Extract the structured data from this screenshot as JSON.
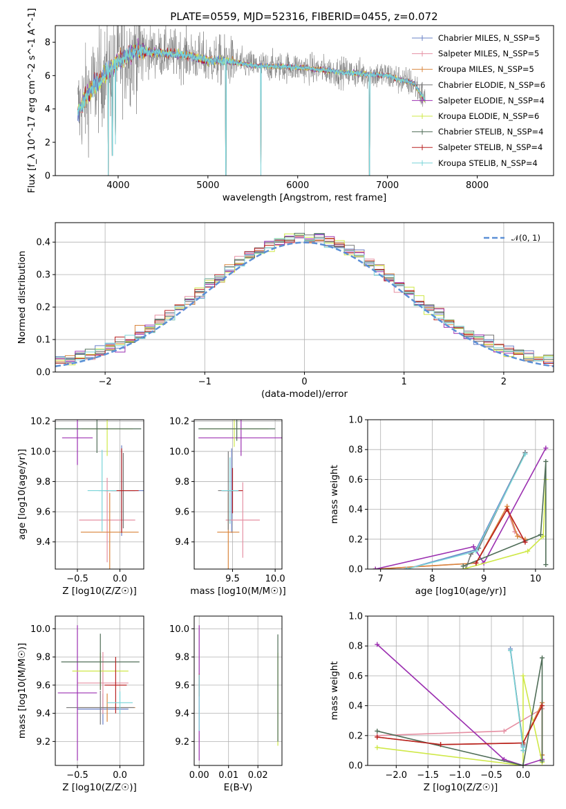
{
  "title": "PLATE=0559, MJD=52316, FIBERID=0455, z=0.072",
  "series": [
    {
      "name": "Chabrier MILES",
      "legend": "Chabrier MILES, N_SSP=5",
      "color": "#6a80c6"
    },
    {
      "name": "Salpeter MILES",
      "legend": "Salpeter MILES, N_SSP=5",
      "color": "#e58fa2"
    },
    {
      "name": "Kroupa MILES",
      "legend": "Kroupa MILES, N_SSP=5",
      "color": "#d9853c"
    },
    {
      "name": "Chabrier ELODIE",
      "legend": "Chabrier ELODIE, N_SSP=6",
      "color": "#777777"
    },
    {
      "name": "Salpeter ELODIE",
      "legend": "Salpeter ELODIE, N_SSP=4",
      "color": "#9b2fb0"
    },
    {
      "name": "Kroupa ELODIE",
      "legend": "Kroupa ELODIE, N_SSP=6",
      "color": "#cfe847"
    },
    {
      "name": "Chabrier STELIB",
      "legend": "Chabrier STELIB, N_SSP=4",
      "color": "#4f6d57"
    },
    {
      "name": "Salpeter STELIB",
      "legend": "Salpeter STELIB, N_SSP=4",
      "color": "#b82020"
    },
    {
      "name": "Kroupa STELIB",
      "legend": "Kroupa STELIB, N_SSP=4",
      "color": "#78d4d8"
    }
  ],
  "chart_data": [
    {
      "type": "line",
      "id": "spectrum",
      "xlabel": "wavelength [Angstrom, rest frame]",
      "ylabel": "Flux [f_λ 10^-17 erg cm^-2 s^-1 A^-1]",
      "xlim": [
        3300,
        8850
      ],
      "ylim": [
        0,
        9
      ],
      "xticks": [
        4000,
        5000,
        6000,
        7000,
        8000
      ],
      "yticks": [
        0,
        2,
        4,
        6,
        8
      ],
      "legend_position": "top-right",
      "wavelength_range": [
        3550,
        7420
      ],
      "continuum": {
        "x": [
          3550,
          3600,
          3700,
          3800,
          3900,
          4000,
          4100,
          4200,
          4400,
          4600,
          4800,
          5000,
          5200,
          5500,
          6000,
          6500,
          7000,
          7300,
          7420
        ],
        "y": [
          3.8,
          4.3,
          5.2,
          5.8,
          6.3,
          6.9,
          7.2,
          7.5,
          7.4,
          7.3,
          7.2,
          6.9,
          6.9,
          6.6,
          6.5,
          6.2,
          6.0,
          5.5,
          4.5
        ]
      },
      "spikes": [
        {
          "x": 3890,
          "y": 0.0
        },
        {
          "x": 3935,
          "y": 1.2
        },
        {
          "x": 3970,
          "y": 1.9
        },
        {
          "x": 5200,
          "y": 0.0
        },
        {
          "x": 5590,
          "y": 0.0
        },
        {
          "x": 6800,
          "y": 0.0
        }
      ]
    },
    {
      "type": "bar",
      "id": "residuals",
      "xlabel": "(data-model)/error",
      "ylabel": "Normed distribution",
      "xlim": [
        -2.5,
        2.5
      ],
      "ylim": [
        0,
        0.46
      ],
      "xticks": [
        -2,
        -1,
        0,
        1,
        2
      ],
      "yticks": [
        0.0,
        0.1,
        0.2,
        0.3,
        0.4
      ],
      "grid": true,
      "legend_position": "top-right",
      "reference_curve": {
        "name": "𝒩(0, 1)",
        "mean": 0,
        "sigma": 1
      },
      "bin_width": 0.1
    },
    {
      "type": "scatter",
      "id": "age_vs_Z",
      "xlabel": "Z [log10(Z/Z☉)]",
      "ylabel": "age [log10(age/yr)]",
      "xlim": [
        -0.76,
        0.28
      ],
      "ylim": [
        9.22,
        10.21
      ],
      "xticks": [
        -0.5,
        0.0
      ],
      "yticks": [
        9.4,
        9.6,
        9.8,
        10.0,
        10.2
      ],
      "grid": true,
      "points": [
        {
          "series": "Chabrier MILES",
          "x": 0.02,
          "xerr": 0.27,
          "y": 9.74,
          "yerr": 0.3
        },
        {
          "series": "Salpeter MILES",
          "x": -0.15,
          "xerr": 0.33,
          "y": 9.545,
          "yerr": 0.28
        },
        {
          "series": "Kroupa MILES",
          "x": -0.12,
          "xerr": 0.34,
          "y": 9.465,
          "yerr": 0.26
        },
        {
          "series": "Chabrier ELODIE",
          "x": 0.04,
          "xerr": 0.14,
          "y": 9.74,
          "yerr": 0.25
        },
        {
          "series": "Salpeter ELODIE",
          "x": -0.5,
          "xerr": 0.18,
          "y": 10.09,
          "yerr": 0.18
        },
        {
          "series": "Kroupa ELODIE",
          "x": -0.15,
          "xerr": 0.3,
          "y": 10.15,
          "yerr": 0.18
        },
        {
          "series": "Chabrier STELIB",
          "x": -0.27,
          "xerr": 0.52,
          "y": 10.15,
          "yerr": 0.16
        },
        {
          "series": "Salpeter STELIB",
          "x": 0.02,
          "xerr": 0.2,
          "y": 9.74,
          "yerr": 0.28
        },
        {
          "series": "Kroupa STELIB",
          "x": -0.21,
          "xerr": 0.17,
          "y": 9.74,
          "yerr": 0.27
        }
      ]
    },
    {
      "type": "scatter",
      "id": "age_vs_mass",
      "xlabel": "mass [log10(M/M☉)]",
      "ylabel": "",
      "xlim": [
        9.05,
        10.08
      ],
      "ylim": [
        9.22,
        10.21
      ],
      "xticks": [
        9.5,
        10.0
      ],
      "yticks": [
        9.4,
        9.6,
        9.8,
        10.0,
        10.2
      ],
      "grid": true,
      "points": [
        {
          "series": "Chabrier MILES",
          "x": 9.49,
          "xerr": 0.12,
          "y": 9.74,
          "yerr": 0.28
        },
        {
          "series": "Salpeter MILES",
          "x": 9.62,
          "xerr": 0.2,
          "y": 9.545,
          "yerr": 0.25
        },
        {
          "series": "Kroupa MILES",
          "x": 9.45,
          "xerr": 0.13,
          "y": 9.465,
          "yerr": 0.26
        },
        {
          "series": "Chabrier ELODIE",
          "x": 9.45,
          "xerr": 0.12,
          "y": 9.74,
          "yerr": 0.26
        },
        {
          "series": "Salpeter ELODIE",
          "x": 9.6,
          "xerr": 0.5,
          "y": 10.09,
          "yerr": 0.12
        },
        {
          "series": "Kroupa ELODIE",
          "x": 9.52,
          "xerr": 0.4,
          "y": 10.15,
          "yerr": 0.12
        },
        {
          "series": "Chabrier STELIB",
          "x": 9.55,
          "xerr": 0.45,
          "y": 10.15,
          "yerr": 0.08
        },
        {
          "series": "Salpeter STELIB",
          "x": 9.5,
          "xerr": 0.12,
          "y": 9.74,
          "yerr": 0.15
        },
        {
          "series": "Kroupa STELIB",
          "x": 9.47,
          "xerr": 0.1,
          "y": 9.74,
          "yerr": 0.22
        }
      ]
    },
    {
      "type": "line",
      "id": "massweight_vs_age",
      "xlabel": "age [log10(age/yr)]",
      "ylabel": "mass weight",
      "xlim": [
        6.75,
        10.35
      ],
      "ylim": [
        0.0,
        1.0
      ],
      "xticks": [
        7,
        8,
        9,
        10
      ],
      "yticks": [
        0.0,
        0.2,
        0.4,
        0.6,
        0.8,
        1.0
      ],
      "grid": true,
      "lines": [
        {
          "series": "Chabrier MILES",
          "x": [
            7.5,
            8.85,
            9.8
          ],
          "y": [
            0.0,
            0.13,
            0.78
          ]
        },
        {
          "series": "Salpeter MILES",
          "x": [
            6.9,
            8.85,
            9.45,
            9.6,
            9.8
          ],
          "y": [
            0.0,
            0.04,
            0.4,
            0.25,
            0.19
          ]
        },
        {
          "series": "Kroupa MILES",
          "x": [
            6.9,
            8.85,
            9.45,
            9.65,
            9.8
          ],
          "y": [
            0.0,
            0.04,
            0.42,
            0.22,
            0.2
          ]
        },
        {
          "series": "Chabrier ELODIE",
          "x": [
            8.65,
            8.75,
            8.9,
            9.8
          ],
          "y": [
            0.0,
            0.1,
            0.14,
            0.78
          ]
        },
        {
          "series": "Salpeter ELODIE",
          "x": [
            6.9,
            8.8,
            9.0,
            10.2
          ],
          "y": [
            0.0,
            0.15,
            0.04,
            0.81
          ]
        },
        {
          "series": "Kroupa ELODIE",
          "x": [
            8.6,
            9.85,
            10.15,
            10.2
          ],
          "y": [
            0.0,
            0.12,
            0.22,
            0.6
          ]
        },
        {
          "series": "Chabrier STELIB",
          "x": [
            8.6,
            10.1,
            10.2,
            10.2
          ],
          "y": [
            0.02,
            0.23,
            0.72,
            0.03
          ]
        },
        {
          "series": "Salpeter STELIB",
          "x": [
            8.85,
            9.45,
            9.8
          ],
          "y": [
            0.04,
            0.4,
            0.18
          ]
        },
        {
          "series": "Kroupa STELIB",
          "x": [
            7.5,
            8.85,
            9.8
          ],
          "y": [
            0.0,
            0.12,
            0.77
          ]
        }
      ]
    },
    {
      "type": "scatter",
      "id": "mass_vs_Z",
      "xlabel": "Z [log10(Z/Z☉)]",
      "ylabel": "mass [log10(M/M☉)]",
      "xlim": [
        -0.76,
        0.28
      ],
      "ylim": [
        9.03,
        10.09
      ],
      "xticks": [
        -0.5,
        0.0
      ],
      "yticks": [
        9.2,
        9.4,
        9.6,
        9.8,
        10.0
      ],
      "grid": true,
      "points": [
        {
          "series": "Chabrier MILES",
          "x": -0.2,
          "xerr": 0.3,
          "y": 9.43,
          "yerr": 0.11
        },
        {
          "series": "Salpeter MILES",
          "x": -0.2,
          "xerr": 0.3,
          "y": 9.615,
          "yerr": 0.22
        },
        {
          "series": "Kroupa MILES",
          "x": -0.15,
          "xerr": 0.33,
          "y": 9.44,
          "yerr": 0.1
        },
        {
          "series": "Chabrier ELODIE",
          "x": -0.23,
          "xerr": 0.4,
          "y": 9.44,
          "yerr": 0.12
        },
        {
          "series": "Salpeter ELODIE",
          "x": -0.5,
          "xerr": 0.23,
          "y": 9.545,
          "yerr": 0.48
        },
        {
          "series": "Kroupa ELODIE",
          "x": -0.23,
          "xerr": 0.33,
          "y": 9.7,
          "yerr": 0.13
        },
        {
          "series": "Chabrier STELIB",
          "x": -0.23,
          "xerr": 0.46,
          "y": 9.765,
          "yerr": 0.2
        },
        {
          "series": "Salpeter STELIB",
          "x": -0.05,
          "xerr": 0.13,
          "y": 9.6,
          "yerr": 0.2
        },
        {
          "series": "Kroupa STELIB",
          "x": 0.0,
          "xerr": 0.15,
          "y": 9.475,
          "yerr": 0.08
        }
      ]
    },
    {
      "type": "scatter",
      "id": "mass_vs_ebv",
      "xlabel": "E(B-V)",
      "ylabel": "",
      "xlim": [
        -0.0017,
        0.0282
      ],
      "ylim": [
        9.03,
        10.09
      ],
      "xticks": [
        0.0,
        0.01,
        0.02
      ],
      "yticks": [
        9.2,
        9.4,
        9.6,
        9.8,
        10.0
      ],
      "grid": true,
      "points": [
        {
          "series": "Salpeter ELODIE",
          "x": 0.0,
          "y": 9.545,
          "yerr": 0.48
        },
        {
          "series": "Salpeter STELIB",
          "x": 0.0,
          "y": 9.6,
          "yerr": 0.08
        },
        {
          "series": "Kroupa STELIB",
          "x": 0.0,
          "y": 9.475,
          "yerr": 0.2
        },
        {
          "series": "Kroupa ELODIE",
          "x": 0.0268,
          "y": 9.5,
          "yerr": 0.33
        },
        {
          "series": "Chabrier STELIB",
          "x": 0.0268,
          "y": 9.58,
          "yerr": 0.38
        }
      ]
    },
    {
      "type": "line",
      "id": "massweight_vs_Z",
      "xlabel": "Z [log10(Z/Z☉)]",
      "ylabel": "mass weight",
      "xlim": [
        -2.45,
        0.48
      ],
      "ylim": [
        0.0,
        1.0
      ],
      "xticks": [
        -2.0,
        -1.5,
        -1.0,
        -0.5,
        0.0
      ],
      "yticks": [
        0.0,
        0.2,
        0.4,
        0.6,
        0.8,
        1.0
      ],
      "grid": true,
      "lines": [
        {
          "series": "Chabrier MILES",
          "x": [
            -0.2,
            0.0,
            0.0
          ],
          "y": [
            0.78,
            0.13,
            0.1
          ]
        },
        {
          "series": "Salpeter MILES",
          "x": [
            -2.3,
            -0.3,
            0.3,
            0.3
          ],
          "y": [
            0.2,
            0.23,
            0.38,
            0.07
          ]
        },
        {
          "series": "Kroupa MILES",
          "x": [
            -2.3,
            -1.3,
            0.0,
            0.3,
            0.3
          ],
          "y": [
            0.19,
            0.14,
            0.15,
            0.42,
            0.07
          ]
        },
        {
          "series": "Chabrier ELODIE",
          "x": [
            -0.2,
            0.0,
            0.0
          ],
          "y": [
            0.77,
            0.14,
            0.1
          ]
        },
        {
          "series": "Salpeter ELODIE",
          "x": [
            -2.3,
            -0.3,
            0.0,
            0.3
          ],
          "y": [
            0.81,
            0.04,
            0.0,
            0.04
          ]
        },
        {
          "series": "Kroupa ELODIE",
          "x": [
            -2.3,
            0.0,
            0.0,
            0.3
          ],
          "y": [
            0.12,
            0.0,
            0.6,
            0.02
          ]
        },
        {
          "series": "Chabrier STELIB",
          "x": [
            -2.3,
            0.0,
            0.3,
            0.3
          ],
          "y": [
            0.23,
            0.0,
            0.72,
            0.03
          ]
        },
        {
          "series": "Salpeter STELIB",
          "x": [
            -2.3,
            -1.3,
            0.0,
            0.3
          ],
          "y": [
            0.19,
            0.14,
            0.15,
            0.4
          ]
        },
        {
          "series": "Kroupa STELIB",
          "x": [
            -0.2,
            0.0,
            0.0
          ],
          "y": [
            0.77,
            0.12,
            0.1
          ]
        }
      ]
    }
  ]
}
